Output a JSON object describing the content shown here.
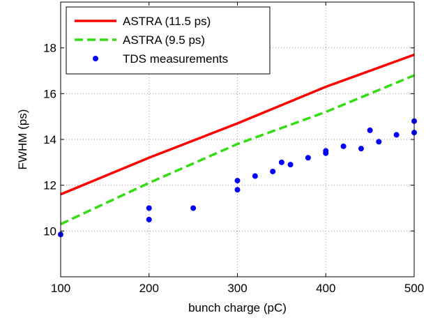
{
  "chart_data": {
    "type": "line",
    "title": "",
    "xlabel": "bunch charge (pC)",
    "ylabel": "FWHM (ps)",
    "xlim": [
      100,
      500
    ],
    "ylim": [
      8,
      20
    ],
    "xticks": [
      100,
      200,
      300,
      400,
      500
    ],
    "yticks": [
      10,
      12,
      14,
      16,
      18
    ],
    "grid": true,
    "legend_position": "top-left",
    "series": [
      {
        "name": "ASTRA (11.5 ps)",
        "style": "solid",
        "color": "#ff0000",
        "x": [
          100,
          200,
          300,
          400,
          500
        ],
        "y": [
          11.6,
          13.2,
          14.7,
          16.3,
          17.7
        ]
      },
      {
        "name": "ASTRA (9.5 ps)",
        "style": "dashed",
        "color": "#33dd11",
        "x": [
          100,
          200,
          300,
          400,
          500
        ],
        "y": [
          10.3,
          12.1,
          13.8,
          15.2,
          16.8
        ]
      },
      {
        "name": "TDS measurements",
        "style": "markers",
        "color": "#0000ff",
        "x": [
          100,
          200,
          200,
          250,
          300,
          300,
          320,
          340,
          350,
          360,
          380,
          400,
          400,
          420,
          440,
          450,
          460,
          480,
          500,
          500
        ],
        "y": [
          9.85,
          11.0,
          10.5,
          11.0,
          12.2,
          11.8,
          12.4,
          12.6,
          13.0,
          12.9,
          13.2,
          13.5,
          13.4,
          13.7,
          13.6,
          14.4,
          13.9,
          14.2,
          14.8,
          14.3
        ]
      }
    ]
  }
}
